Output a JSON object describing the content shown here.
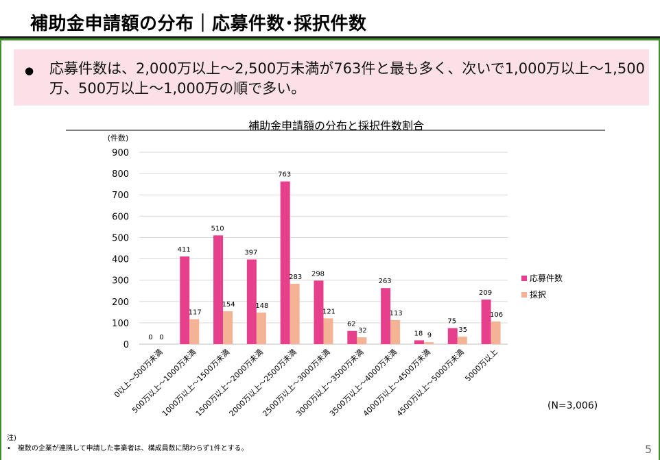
{
  "slide": {
    "title": "補助金申請額の分布｜応募件数･採択件数",
    "bullet": "●",
    "summary": "応募件数は、2,000万以上～2,500万未満が763件と最も多く、次いで1,000万以上～1,500万、500万以上～1,000万の順で多い。",
    "n_label": "(N=3,006)",
    "note_head": "注)",
    "note_line": "•　複数の企業が連携して申請した事業者は、構成員数に関わらず1件とする。",
    "page_number": "5"
  },
  "colors": {
    "frame": "#3f8f2f",
    "application": "#e6408c",
    "adopted": "#f4b395",
    "summary_bg": "#fbe1e7"
  },
  "chart_data": {
    "type": "bar",
    "title": "補助金申請額の分布と採択件数割合",
    "ylabel": "(件数)",
    "ylim": [
      0,
      900
    ],
    "yticks": [
      0,
      100,
      200,
      300,
      400,
      500,
      600,
      700,
      800,
      900
    ],
    "grid": true,
    "legend_position": "right",
    "categories": [
      "0以上～500万未満",
      "500万以上～1000万未満",
      "1000万以上～1500万未満",
      "1500万以上～2000万未満",
      "2000万以上～2500万未満",
      "2500万以上～3000万未満",
      "3000万以上～3500万未満",
      "3500万以上～4000万未満",
      "4000万以上～4500万未満",
      "4500万以上～5000万未満",
      "5000万以上"
    ],
    "series": [
      {
        "name": "応募件数",
        "values": [
          0,
          411,
          510,
          397,
          763,
          298,
          62,
          263,
          18,
          75,
          209
        ]
      },
      {
        "name": "採択",
        "values": [
          0,
          117,
          154,
          148,
          283,
          121,
          32,
          113,
          9,
          35,
          106
        ]
      }
    ]
  }
}
